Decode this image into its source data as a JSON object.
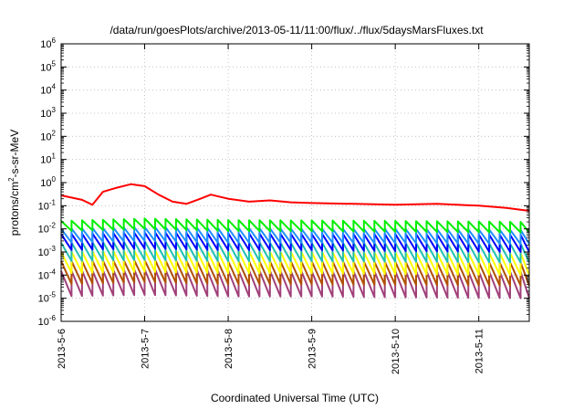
{
  "chart_data": {
    "type": "line",
    "title": "/data/run/goesPlots/archive/2013-05-11/11:00/flux/../flux/5daysMarsFluxes.txt",
    "xlabel": "Coordinated Universal Time (UTC)",
    "ylabel": {
      "prefix": "protons/cm",
      "sup": "2",
      "suffix": "-s-sr-MeV"
    },
    "x_scale": "time",
    "xlim": [
      "2013-05-06T00:00",
      "2013-05-11T14:30"
    ],
    "x_ticks": [
      "2013-5-6",
      "2013-5-7",
      "2013-5-8",
      "2013-5-9",
      "2013-5-10",
      "2013-5-11"
    ],
    "y_scale": "log",
    "ylim": [
      1e-06,
      1000000.0
    ],
    "y_ticks": [
      {
        "base": "10",
        "exp": "-6"
      },
      {
        "base": "10",
        "exp": "-5"
      },
      {
        "base": "10",
        "exp": "-4"
      },
      {
        "base": "10",
        "exp": "-3"
      },
      {
        "base": "10",
        "exp": "-2"
      },
      {
        "base": "10",
        "exp": "-1"
      },
      {
        "base": "10",
        "exp": "0"
      },
      {
        "base": "10",
        "exp": "1"
      },
      {
        "base": "10",
        "exp": "2"
      },
      {
        "base": "10",
        "exp": "3"
      },
      {
        "base": "10",
        "exp": "4"
      },
      {
        "base": "10",
        "exp": "5"
      },
      {
        "base": "10",
        "exp": "6"
      }
    ],
    "grid": true,
    "sawtooth_period_hours": 3,
    "series": [
      {
        "color": "#ff0000",
        "points": [
          [
            "2013-05-06T00:00",
            0.28
          ],
          [
            "2013-05-06T06:00",
            0.18
          ],
          [
            "2013-05-06T09:00",
            0.11
          ],
          [
            "2013-05-06T12:00",
            0.4
          ],
          [
            "2013-05-06T16:00",
            0.6
          ],
          [
            "2013-05-06T20:00",
            0.85
          ],
          [
            "2013-05-07T00:00",
            0.7
          ],
          [
            "2013-05-07T04:00",
            0.3
          ],
          [
            "2013-05-07T08:00",
            0.15
          ],
          [
            "2013-05-07T12:00",
            0.12
          ],
          [
            "2013-05-07T16:00",
            0.2
          ],
          [
            "2013-05-07T19:00",
            0.3
          ],
          [
            "2013-05-08T00:00",
            0.2
          ],
          [
            "2013-05-08T06:00",
            0.15
          ],
          [
            "2013-05-08T12:00",
            0.17
          ],
          [
            "2013-05-08T18:00",
            0.14
          ],
          [
            "2013-05-09T00:00",
            0.13
          ],
          [
            "2013-05-09T12:00",
            0.12
          ],
          [
            "2013-05-10T00:00",
            0.11
          ],
          [
            "2013-05-10T12:00",
            0.12
          ],
          [
            "2013-05-11T00:00",
            0.1
          ],
          [
            "2013-05-11T08:00",
            0.08
          ],
          [
            "2013-05-11T14:30",
            0.06
          ]
        ]
      },
      {
        "color": "#00ee00",
        "peaks": [
          [
            "2013-05-06T00:00",
            0.022
          ],
          [
            "2013-05-07T00:00",
            0.028
          ],
          [
            "2013-05-08T00:00",
            0.024
          ],
          [
            "2013-05-09T00:00",
            0.023
          ],
          [
            "2013-05-10T00:00",
            0.022
          ],
          [
            "2013-05-11T14:30",
            0.02
          ]
        ],
        "troughs": [
          [
            "2013-05-06T00:00",
            0.008
          ],
          [
            "2013-05-07T00:00",
            0.01
          ],
          [
            "2013-05-08T00:00",
            0.008
          ],
          [
            "2013-05-09T00:00",
            0.008
          ],
          [
            "2013-05-10T00:00",
            0.0075
          ],
          [
            "2013-05-11T14:30",
            0.007
          ]
        ]
      },
      {
        "color": "#1e90ff",
        "peaks": [
          [
            "2013-05-06T00:00",
            0.01
          ],
          [
            "2013-05-07T00:00",
            0.012
          ],
          [
            "2013-05-08T00:00",
            0.011
          ],
          [
            "2013-05-09T00:00",
            0.01
          ],
          [
            "2013-05-10T00:00",
            0.01
          ],
          [
            "2013-05-11T14:30",
            0.009
          ]
        ],
        "troughs": [
          [
            "2013-05-06T00:00",
            0.0025
          ],
          [
            "2013-05-07T00:00",
            0.003
          ],
          [
            "2013-05-08T00:00",
            0.0025
          ],
          [
            "2013-05-09T00:00",
            0.0025
          ],
          [
            "2013-05-10T00:00",
            0.0024
          ],
          [
            "2013-05-11T14:30",
            0.0022
          ]
        ]
      },
      {
        "color": "#0000ff",
        "peaks": [
          [
            "2013-05-06T00:00",
            0.006
          ],
          [
            "2013-05-07T00:00",
            0.007
          ],
          [
            "2013-05-08T00:00",
            0.0065
          ],
          [
            "2013-05-09T00:00",
            0.006
          ],
          [
            "2013-05-10T00:00",
            0.006
          ],
          [
            "2013-05-11T14:30",
            0.0055
          ]
        ],
        "troughs": [
          [
            "2013-05-06T00:00",
            0.0012
          ],
          [
            "2013-05-07T00:00",
            0.0014
          ],
          [
            "2013-05-08T00:00",
            0.0012
          ],
          [
            "2013-05-09T00:00",
            0.0012
          ],
          [
            "2013-05-10T00:00",
            0.0011
          ],
          [
            "2013-05-11T14:30",
            0.001
          ]
        ]
      },
      {
        "color": "#20c0b0",
        "peaks": [
          [
            "2013-05-06T00:00",
            0.0025
          ],
          [
            "2013-05-07T00:00",
            0.003
          ],
          [
            "2013-05-08T00:00",
            0.0027
          ],
          [
            "2013-05-09T00:00",
            0.0025
          ],
          [
            "2013-05-10T00:00",
            0.0025
          ],
          [
            "2013-05-11T14:30",
            0.0023
          ]
        ],
        "troughs": [
          [
            "2013-05-06T00:00",
            0.0004
          ],
          [
            "2013-05-07T00:00",
            0.00045
          ],
          [
            "2013-05-08T00:00",
            0.0004
          ],
          [
            "2013-05-09T00:00",
            0.0004
          ],
          [
            "2013-05-10T00:00",
            0.00038
          ],
          [
            "2013-05-11T14:30",
            0.00035
          ]
        ]
      },
      {
        "color": "#ffff00",
        "peaks": [
          [
            "2013-05-06T00:00",
            0.001
          ],
          [
            "2013-05-07T00:00",
            0.0012
          ],
          [
            "2013-05-08T00:00",
            0.0011
          ],
          [
            "2013-05-09T00:00",
            0.001
          ],
          [
            "2013-05-10T00:00",
            0.001
          ],
          [
            "2013-05-11T14:30",
            0.0009
          ]
        ],
        "troughs": [
          [
            "2013-05-06T00:00",
            0.00012
          ],
          [
            "2013-05-07T00:00",
            0.00014
          ],
          [
            "2013-05-08T00:00",
            0.00012
          ],
          [
            "2013-05-09T00:00",
            0.00012
          ],
          [
            "2013-05-10T00:00",
            0.00011
          ],
          [
            "2013-05-11T14:30",
            0.0001
          ]
        ]
      },
      {
        "color": "#b05000",
        "peaks": [
          [
            "2013-05-06T00:00",
            0.0004
          ],
          [
            "2013-05-07T00:00",
            0.00045
          ],
          [
            "2013-05-08T00:00",
            0.0004
          ],
          [
            "2013-05-09T00:00",
            0.0004
          ],
          [
            "2013-05-10T00:00",
            0.00038
          ],
          [
            "2013-05-11T14:30",
            0.00035
          ]
        ],
        "troughs": [
          [
            "2013-05-06T00:00",
            4e-05
          ],
          [
            "2013-05-07T00:00",
            5e-05
          ],
          [
            "2013-05-08T00:00",
            4e-05
          ],
          [
            "2013-05-09T00:00",
            4e-05
          ],
          [
            "2013-05-10T00:00",
            3.8e-05
          ],
          [
            "2013-05-11T14:30",
            3.5e-05
          ]
        ]
      },
      {
        "color": "#a0407a",
        "peaks": [
          [
            "2013-05-06T00:00",
            0.00015
          ],
          [
            "2013-05-07T00:00",
            0.00018
          ],
          [
            "2013-05-08T00:00",
            0.00016
          ],
          [
            "2013-05-09T00:00",
            0.00015
          ],
          [
            "2013-05-10T00:00",
            0.00015
          ],
          [
            "2013-05-11T14:30",
            0.00014
          ]
        ],
        "troughs": [
          [
            "2013-05-06T00:00",
            1.2e-05
          ],
          [
            "2013-05-07T00:00",
            1.4e-05
          ],
          [
            "2013-05-08T00:00",
            1.2e-05
          ],
          [
            "2013-05-09T00:00",
            1.2e-05
          ],
          [
            "2013-05-10T00:00",
            1.1e-05
          ],
          [
            "2013-05-11T14:30",
            1e-05
          ]
        ]
      }
    ]
  }
}
